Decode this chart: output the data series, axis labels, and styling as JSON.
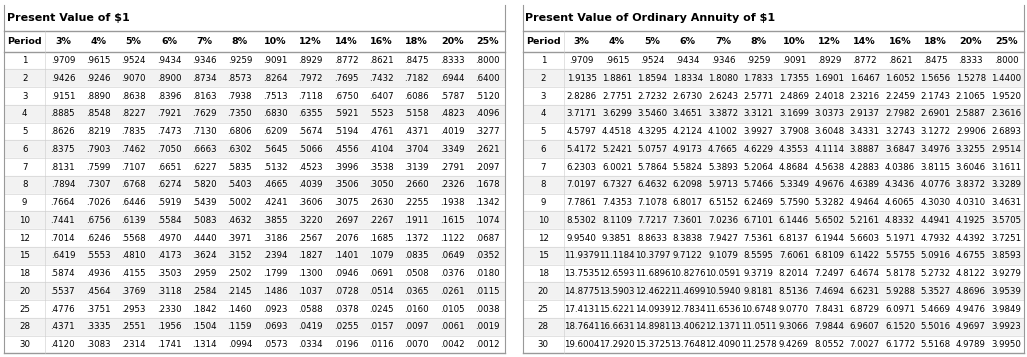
{
  "table1_title": "Present Value of $1",
  "table2_title": "Present Value of Ordinary Annuity of $1",
  "columns": [
    "Period",
    "3%",
    "4%",
    "5%",
    "6%",
    "7%",
    "8%",
    "10%",
    "12%",
    "14%",
    "16%",
    "18%",
    "20%",
    "25%"
  ],
  "periods": [
    1,
    2,
    3,
    4,
    5,
    6,
    7,
    8,
    9,
    10,
    12,
    15,
    18,
    20,
    25,
    28,
    30
  ],
  "table1_data": [
    [
      ".9709",
      ".9615",
      ".9524",
      ".9434",
      ".9346",
      ".9259",
      ".9091",
      ".8929",
      ".8772",
      ".8621",
      ".8475",
      ".8333",
      ".8000"
    ],
    [
      ".9426",
      ".9246",
      ".9070",
      ".8900",
      ".8734",
      ".8573",
      ".8264",
      ".7972",
      ".7695",
      ".7432",
      ".7182",
      ".6944",
      ".6400"
    ],
    [
      ".9151",
      ".8890",
      ".8638",
      ".8396",
      ".8163",
      ".7938",
      ".7513",
      ".7118",
      ".6750",
      ".6407",
      ".6086",
      ".5787",
      ".5120"
    ],
    [
      ".8885",
      ".8548",
      ".8227",
      ".7921",
      ".7629",
      ".7350",
      ".6830",
      ".6355",
      ".5921",
      ".5523",
      ".5158",
      ".4823",
      ".4096"
    ],
    [
      ".8626",
      ".8219",
      ".7835",
      ".7473",
      ".7130",
      ".6806",
      ".6209",
      ".5674",
      ".5194",
      ".4761",
      ".4371",
      ".4019",
      ".3277"
    ],
    [
      ".8375",
      ".7903",
      ".7462",
      ".7050",
      ".6663",
      ".6302",
      ".5645",
      ".5066",
      ".4556",
      ".4104",
      ".3704",
      ".3349",
      ".2621"
    ],
    [
      ".8131",
      ".7599",
      ".7107",
      ".6651",
      ".6227",
      ".5835",
      ".5132",
      ".4523",
      ".3996",
      ".3538",
      ".3139",
      ".2791",
      ".2097"
    ],
    [
      ".7894",
      ".7307",
      ".6768",
      ".6274",
      ".5820",
      ".5403",
      ".4665",
      ".4039",
      ".3506",
      ".3050",
      ".2660",
      ".2326",
      ".1678"
    ],
    [
      ".7664",
      ".7026",
      ".6446",
      ".5919",
      ".5439",
      ".5002",
      ".4241",
      ".3606",
      ".3075",
      ".2630",
      ".2255",
      ".1938",
      ".1342"
    ],
    [
      ".7441",
      ".6756",
      ".6139",
      ".5584",
      ".5083",
      ".4632",
      ".3855",
      ".3220",
      ".2697",
      ".2267",
      ".1911",
      ".1615",
      ".1074"
    ],
    [
      ".7014",
      ".6246",
      ".5568",
      ".4970",
      ".4440",
      ".3971",
      ".3186",
      ".2567",
      ".2076",
      ".1685",
      ".1372",
      ".1122",
      ".0687"
    ],
    [
      ".6419",
      ".5553",
      ".4810",
      ".4173",
      ".3624",
      ".3152",
      ".2394",
      ".1827",
      ".1401",
      ".1079",
      ".0835",
      ".0649",
      ".0352"
    ],
    [
      ".5874",
      ".4936",
      ".4155",
      ".3503",
      ".2959",
      ".2502",
      ".1799",
      ".1300",
      ".0946",
      ".0691",
      ".0508",
      ".0376",
      ".0180"
    ],
    [
      ".5537",
      ".4564",
      ".3769",
      ".3118",
      ".2584",
      ".2145",
      ".1486",
      ".1037",
      ".0728",
      ".0514",
      ".0365",
      ".0261",
      ".0115"
    ],
    [
      ".4776",
      ".3751",
      ".2953",
      ".2330",
      ".1842",
      ".1460",
      ".0923",
      ".0588",
      ".0378",
      ".0245",
      ".0160",
      ".0105",
      ".0038"
    ],
    [
      ".4371",
      ".3335",
      ".2551",
      ".1956",
      ".1504",
      ".1159",
      ".0693",
      ".0419",
      ".0255",
      ".0157",
      ".0097",
      ".0061",
      ".0019"
    ],
    [
      ".4120",
      ".3083",
      ".2314",
      ".1741",
      ".1314",
      ".0994",
      ".0573",
      ".0334",
      ".0196",
      ".0116",
      ".0070",
      ".0042",
      ".0012"
    ]
  ],
  "table2_data": [
    [
      ".9709",
      ".9615",
      ".9524",
      ".9434",
      ".9346",
      ".9259",
      ".9091",
      ".8929",
      ".8772",
      ".8621",
      ".8475",
      ".8333",
      ".8000"
    ],
    [
      "1.9135",
      "1.8861",
      "1.8594",
      "1.8334",
      "1.8080",
      "1.7833",
      "1.7355",
      "1.6901",
      "1.6467",
      "1.6052",
      "1.5656",
      "1.5278",
      "1.4400"
    ],
    [
      "2.8286",
      "2.7751",
      "2.7232",
      "2.6730",
      "2.6243",
      "2.5771",
      "2.4869",
      "2.4018",
      "2.3216",
      "2.2459",
      "2.1743",
      "2.1065",
      "1.9520"
    ],
    [
      "3.7171",
      "3.6299",
      "3.5460",
      "3.4651",
      "3.3872",
      "3.3121",
      "3.1699",
      "3.0373",
      "2.9137",
      "2.7982",
      "2.6901",
      "2.5887",
      "2.3616"
    ],
    [
      "4.5797",
      "4.4518",
      "4.3295",
      "4.2124",
      "4.1002",
      "3.9927",
      "3.7908",
      "3.6048",
      "3.4331",
      "3.2743",
      "3.1272",
      "2.9906",
      "2.6893"
    ],
    [
      "5.4172",
      "5.2421",
      "5.0757",
      "4.9173",
      "4.7665",
      "4.6229",
      "4.3553",
      "4.1114",
      "3.8887",
      "3.6847",
      "3.4976",
      "3.3255",
      "2.9514"
    ],
    [
      "6.2303",
      "6.0021",
      "5.7864",
      "5.5824",
      "5.3893",
      "5.2064",
      "4.8684",
      "4.5638",
      "4.2883",
      "4.0386",
      "3.8115",
      "3.6046",
      "3.1611"
    ],
    [
      "7.0197",
      "6.7327",
      "6.4632",
      "6.2098",
      "5.9713",
      "5.7466",
      "5.3349",
      "4.9676",
      "4.6389",
      "4.3436",
      "4.0776",
      "3.8372",
      "3.3289"
    ],
    [
      "7.7861",
      "7.4353",
      "7.1078",
      "6.8017",
      "6.5152",
      "6.2469",
      "5.7590",
      "5.3282",
      "4.9464",
      "4.6065",
      "4.3030",
      "4.0310",
      "3.4631"
    ],
    [
      "8.5302",
      "8.1109",
      "7.7217",
      "7.3601",
      "7.0236",
      "6.7101",
      "6.1446",
      "5.6502",
      "5.2161",
      "4.8332",
      "4.4941",
      "4.1925",
      "3.5705"
    ],
    [
      "9.9540",
      "9.3851",
      "8.8633",
      "8.3838",
      "7.9427",
      "7.5361",
      "6.8137",
      "6.1944",
      "5.6603",
      "5.1971",
      "4.7932",
      "4.4392",
      "3.7251"
    ],
    [
      "11.9379",
      "11.1184",
      "10.3797",
      "9.7122",
      "9.1079",
      "8.5595",
      "7.6061",
      "6.8109",
      "6.1422",
      "5.5755",
      "5.0916",
      "4.6755",
      "3.8593"
    ],
    [
      "13.7535",
      "12.6593",
      "11.6896",
      "10.8276",
      "10.0591",
      "9.3719",
      "8.2014",
      "7.2497",
      "6.4674",
      "5.8178",
      "5.2732",
      "4.8122",
      "3.9279"
    ],
    [
      "14.8775",
      "13.5903",
      "12.4622",
      "11.4699",
      "10.5940",
      "9.8181",
      "8.5136",
      "7.4694",
      "6.6231",
      "5.9288",
      "5.3527",
      "4.8696",
      "3.9539"
    ],
    [
      "17.4131",
      "15.6221",
      "14.0939",
      "12.7834",
      "11.6536",
      "10.6748",
      "9.0770",
      "7.8431",
      "6.8729",
      "6.0971",
      "5.4669",
      "4.9476",
      "3.9849"
    ],
    [
      "18.7641",
      "16.6631",
      "14.8981",
      "13.4062",
      "12.1371",
      "11.0511",
      "9.3066",
      "7.9844",
      "6.9607",
      "6.1520",
      "5.5016",
      "4.9697",
      "3.9923"
    ],
    [
      "19.6004",
      "17.2920",
      "15.3725",
      "13.7648",
      "12.4090",
      "11.2578",
      "9.4269",
      "8.0552",
      "7.0027",
      "6.1772",
      "5.5168",
      "4.9789",
      "3.9950"
    ]
  ],
  "font_size": 6.2,
  "header_font_size": 6.8,
  "title_font_size": 8.0
}
